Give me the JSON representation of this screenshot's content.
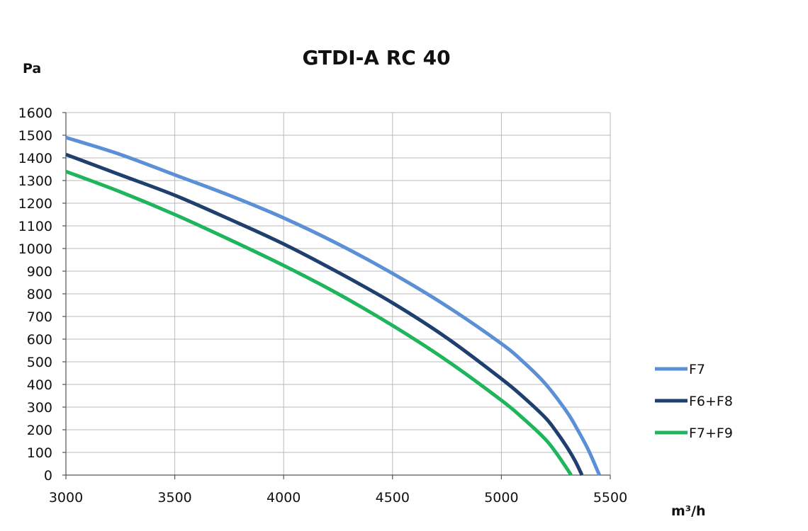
{
  "chart_data": {
    "type": "line",
    "title": "GTDI-A RC 40",
    "ylabel": "Pa",
    "xlabel": "m³/h",
    "xlim": [
      3000,
      5500
    ],
    "ylim": [
      0,
      1600
    ],
    "x_ticks": [
      3000,
      3500,
      4000,
      4500,
      5000,
      5500
    ],
    "y_ticks": [
      0,
      100,
      200,
      300,
      400,
      500,
      600,
      700,
      800,
      900,
      1000,
      1100,
      1200,
      1300,
      1400,
      1500,
      1600
    ],
    "grid": true,
    "legend_position": "right",
    "series": [
      {
        "name": "F7",
        "color": "#5b8fd6",
        "x": [
          3000,
          3250,
          3500,
          3750,
          4000,
          4250,
          4500,
          4750,
          5000,
          5100,
          5200,
          5300,
          5350,
          5400,
          5450
        ],
        "y": [
          1490,
          1415,
          1325,
          1235,
          1135,
          1020,
          890,
          745,
          580,
          500,
          405,
          280,
          200,
          110,
          0
        ]
      },
      {
        "name": "F6+F8",
        "color": "#1f3f6e",
        "x": [
          3000,
          3250,
          3500,
          3750,
          4000,
          4250,
          4500,
          4750,
          5000,
          5100,
          5200,
          5250,
          5300,
          5340,
          5370
        ],
        "y": [
          1415,
          1325,
          1235,
          1130,
          1020,
          895,
          760,
          605,
          425,
          345,
          255,
          195,
          125,
          60,
          0
        ]
      },
      {
        "name": "F7+F9",
        "color": "#1fb55c",
        "x": [
          3000,
          3250,
          3500,
          3750,
          4000,
          4250,
          4500,
          4750,
          5000,
          5100,
          5200,
          5250,
          5300,
          5320
        ],
        "y": [
          1340,
          1250,
          1150,
          1040,
          925,
          800,
          660,
          505,
          330,
          250,
          160,
          100,
          30,
          0
        ]
      }
    ]
  }
}
